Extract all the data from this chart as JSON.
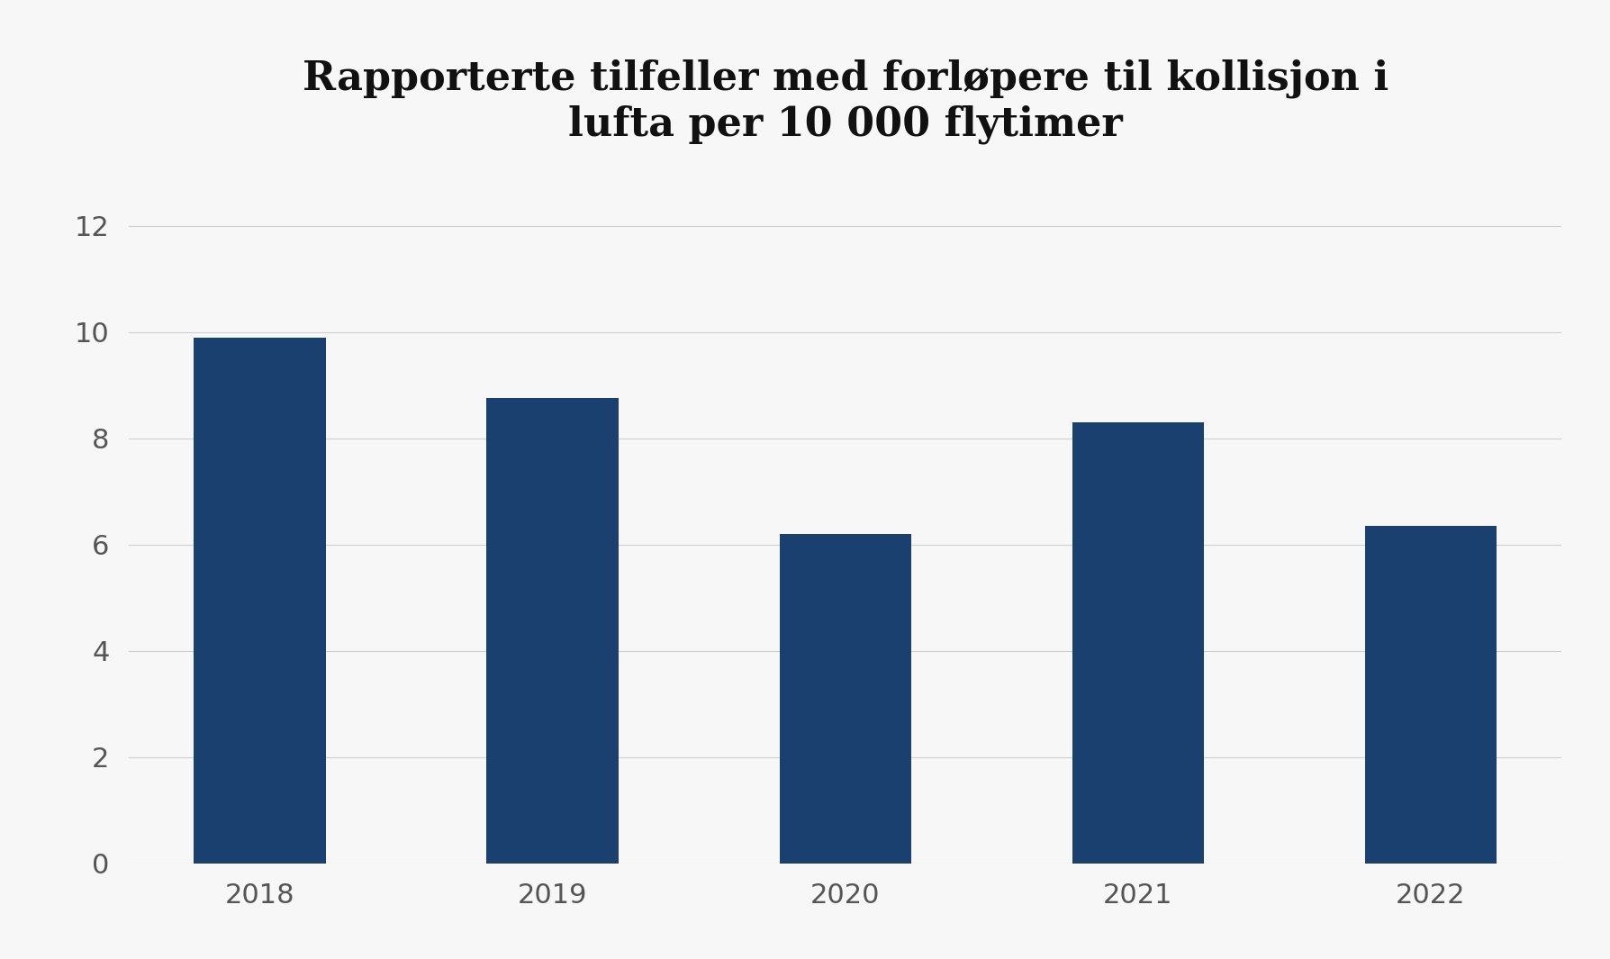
{
  "categories": [
    "2018",
    "2019",
    "2020",
    "2021",
    "2022"
  ],
  "values": [
    9.9,
    8.75,
    6.2,
    8.3,
    6.35
  ],
  "bar_color": "#1a4070",
  "title": "Rapporterte tilfeller med forløpere til kollisjon i\nlufta per 10 000 flytimer",
  "title_fontsize": 32,
  "title_fontfamily": "serif",
  "ylim": [
    0,
    13
  ],
  "yticks": [
    0,
    2,
    4,
    6,
    8,
    10,
    12
  ],
  "background_color": "#f7f7f7",
  "grid_color": "#d0d0d0",
  "bar_width": 0.45,
  "tick_fontsize": 22,
  "tick_color": "#555555"
}
